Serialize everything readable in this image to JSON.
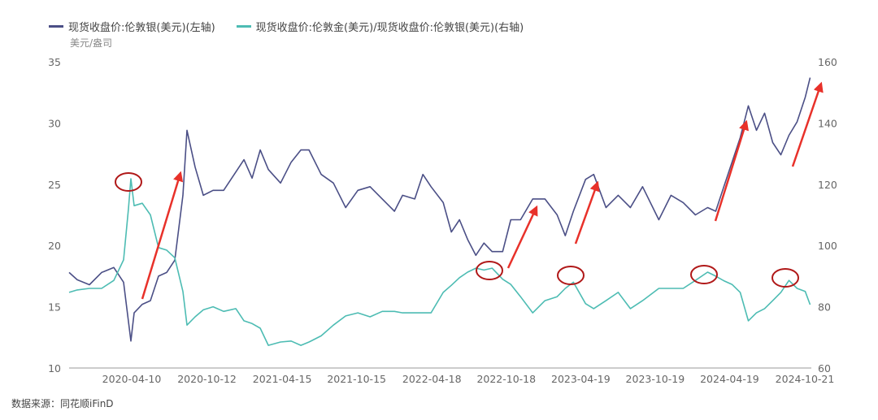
{
  "chart_data": {
    "type": "line",
    "title": "",
    "unit_label": "美元/盎司",
    "legend_position": "top-left",
    "grid": false,
    "x_ticks": [
      "2020-04-10",
      "2020-10-12",
      "2021-04-15",
      "2021-10-15",
      "2022-04-18",
      "2022-10-18",
      "2023-04-19",
      "2023-10-19",
      "2024-04-19",
      "2024-10-21"
    ],
    "y_left": {
      "range": [
        10,
        35
      ],
      "ticks": [
        10,
        15,
        20,
        25,
        30,
        35
      ]
    },
    "y_right": {
      "range": [
        60,
        160
      ],
      "ticks": [
        60,
        80,
        100,
        120,
        140,
        160
      ]
    },
    "x": [
      "2019-11-08",
      "2019-11-28",
      "2019-12-28",
      "2020-01-27",
      "2020-02-26",
      "2020-03-21",
      "2020-04-02",
      "2020-04-08",
      "2020-04-16",
      "2020-05-06",
      "2020-05-26",
      "2020-06-15",
      "2020-07-05",
      "2020-07-25",
      "2020-08-14",
      "2020-08-24",
      "2020-09-13",
      "2020-10-03",
      "2020-10-27",
      "2020-11-22",
      "2020-12-22",
      "2021-01-11",
      "2021-01-31",
      "2021-02-20",
      "2021-03-12",
      "2021-04-11",
      "2021-05-07",
      "2021-05-31",
      "2021-06-20",
      "2021-07-20",
      "2021-08-19",
      "2021-09-18",
      "2021-10-18",
      "2021-11-17",
      "2021-12-17",
      "2022-01-16",
      "2022-02-05",
      "2022-03-07",
      "2022-03-27",
      "2022-04-16",
      "2022-05-16",
      "2022-06-05",
      "2022-06-25",
      "2022-07-15",
      "2022-08-04",
      "2022-08-24",
      "2022-09-13",
      "2022-10-09",
      "2022-10-29",
      "2022-11-22",
      "2022-12-22",
      "2023-01-21",
      "2023-02-20",
      "2023-03-12",
      "2023-04-01",
      "2023-05-01",
      "2023-05-21",
      "2023-06-20",
      "2023-07-20",
      "2023-08-19",
      "2023-09-18",
      "2023-10-28",
      "2023-11-27",
      "2023-12-27",
      "2024-01-26",
      "2024-02-25",
      "2024-03-16",
      "2024-04-05",
      "2024-04-25",
      "2024-05-15",
      "2024-06-04",
      "2024-06-24",
      "2024-07-14",
      "2024-08-03",
      "2024-08-23",
      "2024-09-12",
      "2024-10-02",
      "2024-10-22",
      "2024-11-03"
    ],
    "series": [
      {
        "name": "现货收盘价:伦敦银(美元)(左轴)",
        "axis": "left",
        "color": "#4b4f86",
        "values": [
          17.8,
          17.2,
          16.8,
          17.8,
          18.2,
          17.0,
          13.8,
          12.2,
          14.5,
          15.2,
          15.5,
          17.5,
          17.8,
          18.8,
          24.1,
          29.4,
          26.4,
          24.1,
          24.5,
          24.5,
          26.0,
          27.0,
          25.5,
          27.8,
          26.2,
          25.1,
          26.8,
          27.8,
          27.8,
          25.8,
          25.1,
          23.1,
          24.5,
          24.8,
          23.8,
          22.8,
          24.1,
          23.8,
          25.8,
          24.8,
          23.5,
          21.1,
          22.1,
          20.5,
          19.2,
          20.2,
          19.5,
          19.5,
          22.1,
          22.1,
          23.8,
          23.8,
          22.5,
          20.8,
          22.8,
          25.4,
          25.8,
          23.1,
          24.1,
          23.1,
          24.8,
          22.1,
          24.1,
          23.5,
          22.5,
          23.1,
          22.8,
          24.8,
          26.8,
          28.8,
          31.4,
          29.4,
          30.8,
          28.4,
          27.4,
          29.0,
          30.1,
          32.1,
          33.7
        ]
      },
      {
        "name": "现货收盘价:伦敦金(美元)/现货收盘价:伦敦银(美元)(右轴)",
        "axis": "right",
        "color": "#4dbcb3",
        "values": [
          84.7,
          85.5,
          86,
          86,
          88.6,
          95.3,
          112,
          121.8,
          113,
          113.8,
          110,
          99.3,
          98.5,
          96,
          85,
          74,
          76.7,
          79,
          80,
          78.5,
          79.4,
          75.4,
          74.5,
          73,
          67.4,
          68.5,
          68.8,
          67.4,
          68.5,
          70.5,
          74,
          77,
          78,
          76.7,
          78.5,
          78.5,
          78,
          78,
          78,
          78,
          84.7,
          87,
          89.5,
          91.3,
          92.6,
          92,
          92.6,
          89,
          87.3,
          83.3,
          78,
          82,
          83.3,
          86,
          88,
          81,
          79.4,
          82,
          84.7,
          79.4,
          82,
          86,
          86,
          86,
          88.6,
          91.3,
          90,
          88.5,
          87.3,
          84.7,
          75.4,
          78,
          79.4,
          82,
          84.7,
          88.6,
          86,
          85,
          80.7
        ]
      }
    ],
    "annotation_color": "#e8312a"
  },
  "source": "数据来源：同花顺iFinD"
}
